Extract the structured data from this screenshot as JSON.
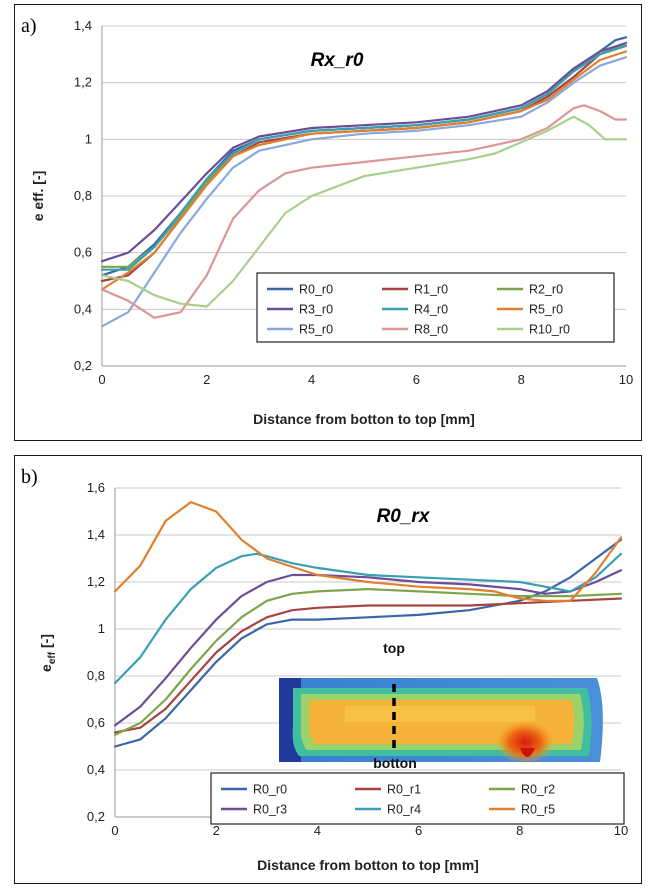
{
  "chart_data": [
    {
      "type": "line",
      "panel_label": "a)",
      "title": "Rx_r0",
      "xlabel": "Distance from botton to top [mm]",
      "ylabel": "e eff. [-]",
      "xlim": [
        0,
        10
      ],
      "ylim": [
        0.2,
        1.4
      ],
      "xticks": [
        0,
        2,
        4,
        6,
        8,
        10
      ],
      "yticks": [
        0.2,
        0.4,
        0.6,
        0.8,
        1,
        1.2,
        1.4
      ],
      "xtick_labels": [
        "0",
        "2",
        "4",
        "6",
        "8",
        "10"
      ],
      "ytick_labels": [
        "0,2",
        "0,4",
        "0,6",
        "0,8",
        "1",
        "1,2",
        "1,4"
      ],
      "grid": "horizontal",
      "legend_position": "bottom-right",
      "series": [
        {
          "name": "R0_r0",
          "color": "#3a66a8",
          "points": [
            [
              0,
              0.52
            ],
            [
              0.5,
              0.55
            ],
            [
              1,
              0.63
            ],
            [
              1.5,
              0.74
            ],
            [
              2,
              0.86
            ],
            [
              2.5,
              0.96
            ],
            [
              3,
              1.0
            ],
            [
              4,
              1.03
            ],
            [
              5,
              1.04
            ],
            [
              6,
              1.05
            ],
            [
              7,
              1.07
            ],
            [
              8,
              1.11
            ],
            [
              8.5,
              1.16
            ],
            [
              9,
              1.24
            ],
            [
              9.5,
              1.31
            ],
            [
              9.8,
              1.35
            ],
            [
              10,
              1.36
            ]
          ]
        },
        {
          "name": "R1_r0",
          "color": "#a64442",
          "points": [
            [
              0,
              0.5
            ],
            [
              0.5,
              0.52
            ],
            [
              1,
              0.6
            ],
            [
              1.5,
              0.72
            ],
            [
              2,
              0.84
            ],
            [
              2.5,
              0.94
            ],
            [
              3,
              0.99
            ],
            [
              4,
              1.02
            ],
            [
              5,
              1.03
            ],
            [
              6,
              1.04
            ],
            [
              7,
              1.06
            ],
            [
              8,
              1.1
            ],
            [
              8.5,
              1.15
            ],
            [
              9,
              1.22
            ],
            [
              9.5,
              1.3
            ],
            [
              10,
              1.33
            ]
          ]
        },
        {
          "name": "R2_r0",
          "color": "#7ea54a",
          "points": [
            [
              0,
              0.55
            ],
            [
              0.5,
              0.55
            ],
            [
              1,
              0.62
            ],
            [
              1.5,
              0.73
            ],
            [
              2,
              0.85
            ],
            [
              2.5,
              0.95
            ],
            [
              3,
              1.0
            ],
            [
              4,
              1.03
            ],
            [
              5,
              1.04
            ],
            [
              6,
              1.05
            ],
            [
              7,
              1.07
            ],
            [
              8,
              1.11
            ],
            [
              8.5,
              1.16
            ],
            [
              9,
              1.24
            ],
            [
              9.5,
              1.3
            ],
            [
              10,
              1.34
            ]
          ]
        },
        {
          "name": "R3_r0",
          "color": "#6a4e96",
          "points": [
            [
              0,
              0.57
            ],
            [
              0.5,
              0.6
            ],
            [
              1,
              0.68
            ],
            [
              1.5,
              0.78
            ],
            [
              2,
              0.88
            ],
            [
              2.5,
              0.97
            ],
            [
              3,
              1.01
            ],
            [
              4,
              1.04
            ],
            [
              5,
              1.05
            ],
            [
              6,
              1.06
            ],
            [
              7,
              1.08
            ],
            [
              8,
              1.12
            ],
            [
              8.5,
              1.17
            ],
            [
              9,
              1.25
            ],
            [
              9.5,
              1.31
            ],
            [
              10,
              1.34
            ]
          ]
        },
        {
          "name": "R4_r0",
          "color": "#3a9fb3",
          "points": [
            [
              0,
              0.54
            ],
            [
              0.5,
              0.54
            ],
            [
              1,
              0.62
            ],
            [
              1.5,
              0.74
            ],
            [
              2,
              0.86
            ],
            [
              2.5,
              0.95
            ],
            [
              3,
              1.0
            ],
            [
              4,
              1.03
            ],
            [
              5,
              1.04
            ],
            [
              6,
              1.05
            ],
            [
              7,
              1.07
            ],
            [
              8,
              1.11
            ],
            [
              8.5,
              1.16
            ],
            [
              9,
              1.24
            ],
            [
              9.5,
              1.3
            ],
            [
              10,
              1.33
            ]
          ]
        },
        {
          "name": "R5_r0",
          "color": "#e0802e",
          "points": [
            [
              0,
              0.47
            ],
            [
              0.5,
              0.53
            ],
            [
              1,
              0.6
            ],
            [
              1.5,
              0.72
            ],
            [
              2,
              0.84
            ],
            [
              2.5,
              0.94
            ],
            [
              3,
              0.98
            ],
            [
              4,
              1.02
            ],
            [
              5,
              1.03
            ],
            [
              6,
              1.04
            ],
            [
              7,
              1.06
            ],
            [
              8,
              1.1
            ],
            [
              8.5,
              1.14
            ],
            [
              9,
              1.21
            ],
            [
              9.5,
              1.28
            ],
            [
              10,
              1.31
            ]
          ]
        },
        {
          "name": "R5_r0",
          "color": "#8aa8dc",
          "points": [
            [
              0,
              0.34
            ],
            [
              0.5,
              0.39
            ],
            [
              1,
              0.53
            ],
            [
              1.5,
              0.67
            ],
            [
              2,
              0.79
            ],
            [
              2.5,
              0.9
            ],
            [
              3,
              0.96
            ],
            [
              4,
              1.0
            ],
            [
              5,
              1.02
            ],
            [
              6,
              1.03
            ],
            [
              7,
              1.05
            ],
            [
              8,
              1.08
            ],
            [
              8.5,
              1.13
            ],
            [
              9,
              1.2
            ],
            [
              9.5,
              1.26
            ],
            [
              10,
              1.29
            ]
          ]
        },
        {
          "name": "R8_r0",
          "color": "#dc9696",
          "points": [
            [
              0,
              0.47
            ],
            [
              0.5,
              0.43
            ],
            [
              1,
              0.37
            ],
            [
              1.5,
              0.39
            ],
            [
              2,
              0.52
            ],
            [
              2.5,
              0.72
            ],
            [
              3,
              0.82
            ],
            [
              3.5,
              0.88
            ],
            [
              4,
              0.9
            ],
            [
              5,
              0.92
            ],
            [
              6,
              0.94
            ],
            [
              7,
              0.96
            ],
            [
              8,
              1.0
            ],
            [
              8.5,
              1.04
            ],
            [
              9,
              1.11
            ],
            [
              9.2,
              1.12
            ],
            [
              9.5,
              1.1
            ],
            [
              9.8,
              1.07
            ],
            [
              10,
              1.07
            ]
          ]
        },
        {
          "name": "R10_r0",
          "color": "#a8cf8c",
          "points": [
            [
              0,
              0.52
            ],
            [
              0.5,
              0.5
            ],
            [
              1,
              0.45
            ],
            [
              1.5,
              0.42
            ],
            [
              2,
              0.41
            ],
            [
              2.5,
              0.5
            ],
            [
              3,
              0.62
            ],
            [
              3.5,
              0.74
            ],
            [
              4,
              0.8
            ],
            [
              5,
              0.87
            ],
            [
              6,
              0.9
            ],
            [
              7,
              0.93
            ],
            [
              7.5,
              0.95
            ],
            [
              8,
              0.99
            ],
            [
              8.5,
              1.03
            ],
            [
              9,
              1.08
            ],
            [
              9.3,
              1.05
            ],
            [
              9.6,
              1.0
            ],
            [
              10,
              1.0
            ]
          ]
        }
      ]
    },
    {
      "type": "line",
      "panel_label": "b)",
      "title": "R0_rx",
      "xlabel": "Distance from botton to top [mm]",
      "ylabel_main": "e",
      "ylabel_sub": "eff",
      "ylabel_unit": " [-]",
      "xlim": [
        0,
        10
      ],
      "ylim": [
        0.2,
        1.6
      ],
      "xticks": [
        0,
        2,
        4,
        6,
        8,
        10
      ],
      "yticks": [
        0.2,
        0.4,
        0.6,
        0.8,
        1,
        1.2,
        1.4,
        1.6
      ],
      "xtick_labels": [
        "0",
        "2",
        "4",
        "6",
        "8",
        "10"
      ],
      "ytick_labels": [
        "0,2",
        "0,4",
        "0,6",
        "0,8",
        "1",
        "1,2",
        "1,4",
        "1,6"
      ],
      "grid": "horizontal",
      "legend_position": "bottom-right",
      "inset_labels": {
        "top": "top",
        "bottom": "botton"
      },
      "series": [
        {
          "name": "R0_r0",
          "color": "#3a66a8",
          "points": [
            [
              0,
              0.5
            ],
            [
              0.5,
              0.53
            ],
            [
              1,
              0.62
            ],
            [
              1.5,
              0.74
            ],
            [
              2,
              0.86
            ],
            [
              2.5,
              0.96
            ],
            [
              3,
              1.02
            ],
            [
              3.5,
              1.04
            ],
            [
              4,
              1.04
            ],
            [
              5,
              1.05
            ],
            [
              6,
              1.06
            ],
            [
              7,
              1.08
            ],
            [
              8,
              1.12
            ],
            [
              8.5,
              1.16
            ],
            [
              9,
              1.22
            ],
            [
              9.5,
              1.3
            ],
            [
              10,
              1.38
            ]
          ]
        },
        {
          "name": "R0_r1",
          "color": "#a64442",
          "points": [
            [
              0,
              0.56
            ],
            [
              0.5,
              0.58
            ],
            [
              1,
              0.66
            ],
            [
              1.5,
              0.78
            ],
            [
              2,
              0.9
            ],
            [
              2.5,
              0.99
            ],
            [
              3,
              1.05
            ],
            [
              3.5,
              1.08
            ],
            [
              4,
              1.09
            ],
            [
              5,
              1.1
            ],
            [
              6,
              1.1
            ],
            [
              7,
              1.1
            ],
            [
              8,
              1.11
            ],
            [
              9,
              1.12
            ],
            [
              10,
              1.13
            ]
          ]
        },
        {
          "name": "R0_r2",
          "color": "#7ea54a",
          "points": [
            [
              0,
              0.55
            ],
            [
              0.5,
              0.6
            ],
            [
              1,
              0.7
            ],
            [
              1.5,
              0.83
            ],
            [
              2,
              0.95
            ],
            [
              2.5,
              1.05
            ],
            [
              3,
              1.12
            ],
            [
              3.5,
              1.15
            ],
            [
              4,
              1.16
            ],
            [
              5,
              1.17
            ],
            [
              6,
              1.16
            ],
            [
              7,
              1.15
            ],
            [
              8,
              1.14
            ],
            [
              9,
              1.14
            ],
            [
              10,
              1.15
            ]
          ]
        },
        {
          "name": "R0_r3",
          "color": "#6a4e96",
          "points": [
            [
              0,
              0.59
            ],
            [
              0.5,
              0.67
            ],
            [
              1,
              0.79
            ],
            [
              1.5,
              0.92
            ],
            [
              2,
              1.04
            ],
            [
              2.5,
              1.14
            ],
            [
              3,
              1.2
            ],
            [
              3.5,
              1.23
            ],
            [
              4,
              1.23
            ],
            [
              5,
              1.22
            ],
            [
              6,
              1.2
            ],
            [
              7,
              1.19
            ],
            [
              8,
              1.17
            ],
            [
              8.5,
              1.15
            ],
            [
              9,
              1.16
            ],
            [
              9.5,
              1.2
            ],
            [
              10,
              1.25
            ]
          ]
        },
        {
          "name": "R0_r4",
          "color": "#3a9fb3",
          "points": [
            [
              0,
              0.77
            ],
            [
              0.5,
              0.88
            ],
            [
              1,
              1.04
            ],
            [
              1.5,
              1.17
            ],
            [
              2,
              1.26
            ],
            [
              2.5,
              1.31
            ],
            [
              2.8,
              1.32
            ],
            [
              3,
              1.31
            ],
            [
              3.5,
              1.28
            ],
            [
              4,
              1.26
            ],
            [
              5,
              1.23
            ],
            [
              6,
              1.22
            ],
            [
              7,
              1.21
            ],
            [
              8,
              1.2
            ],
            [
              8.5,
              1.18
            ],
            [
              9,
              1.16
            ],
            [
              9.5,
              1.22
            ],
            [
              10,
              1.32
            ]
          ]
        },
        {
          "name": "R0_r5",
          "color": "#e0802e",
          "points": [
            [
              0,
              1.16
            ],
            [
              0.5,
              1.27
            ],
            [
              1,
              1.46
            ],
            [
              1.5,
              1.54
            ],
            [
              2,
              1.5
            ],
            [
              2.5,
              1.38
            ],
            [
              3,
              1.3
            ],
            [
              4,
              1.23
            ],
            [
              5,
              1.2
            ],
            [
              6,
              1.18
            ],
            [
              7,
              1.17
            ],
            [
              7.5,
              1.16
            ],
            [
              8,
              1.13
            ],
            [
              8.5,
              1.12
            ],
            [
              9,
              1.12
            ],
            [
              9.5,
              1.24
            ],
            [
              10,
              1.39
            ]
          ]
        }
      ]
    }
  ]
}
